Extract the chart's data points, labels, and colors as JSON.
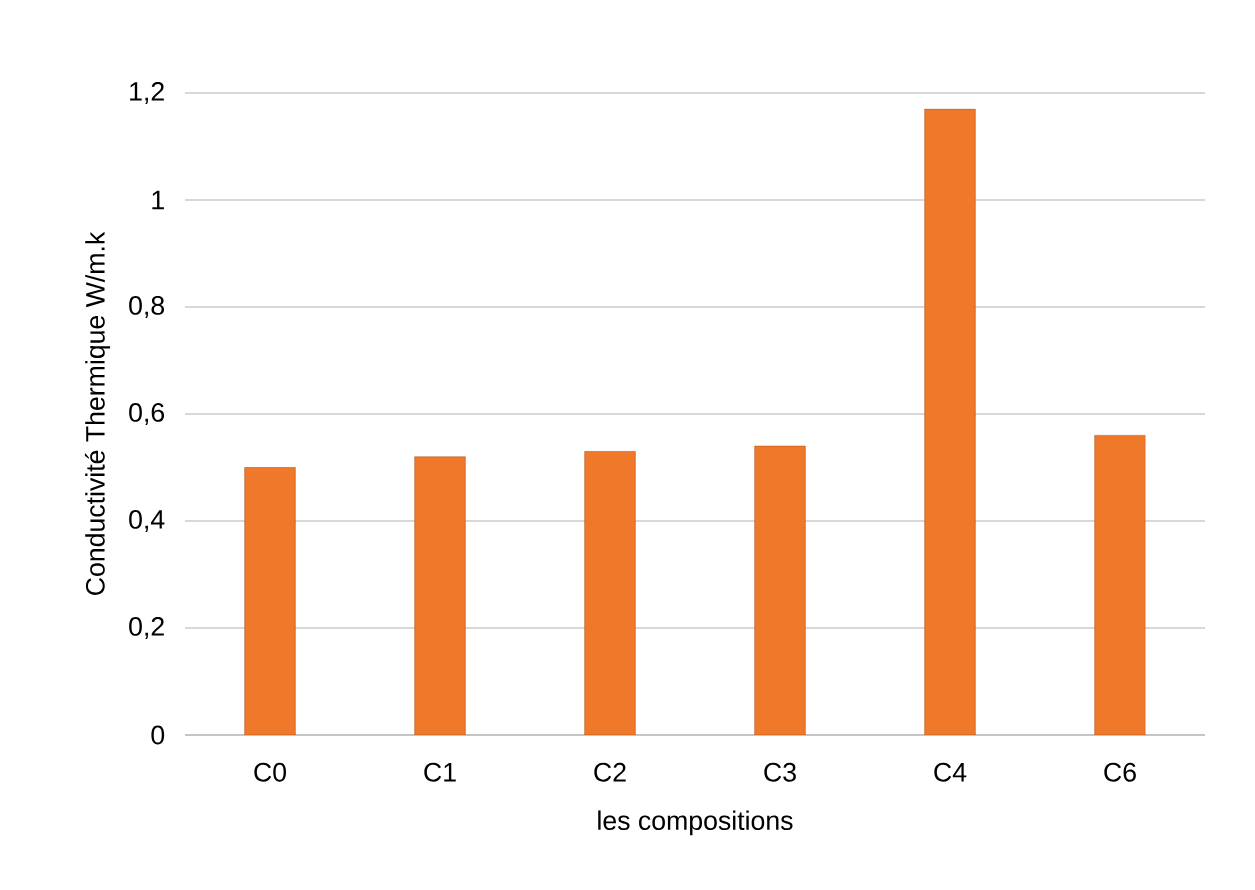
{
  "chart_data": {
    "type": "bar",
    "xlabel": "les compositions",
    "ylabel": "Conductivité Thermique W/m.k",
    "categories": [
      "C0",
      "C1",
      "C2",
      "C3",
      "C4",
      "C6"
    ],
    "values": [
      0.5,
      0.52,
      0.53,
      0.54,
      1.17,
      0.56
    ],
    "color": "#f0782a",
    "ylim": [
      0,
      1.2
    ],
    "yticks": [
      0,
      {
        "value": 0.2,
        "label": "0,2"
      },
      {
        "value": 0.4,
        "label": "0,4"
      },
      {
        "value": 0.6,
        "label": "0,6"
      },
      {
        "value": 0.8,
        "label": "0,8"
      },
      1,
      {
        "value": 1.2,
        "label": "1,2"
      }
    ],
    "grid": "y"
  }
}
